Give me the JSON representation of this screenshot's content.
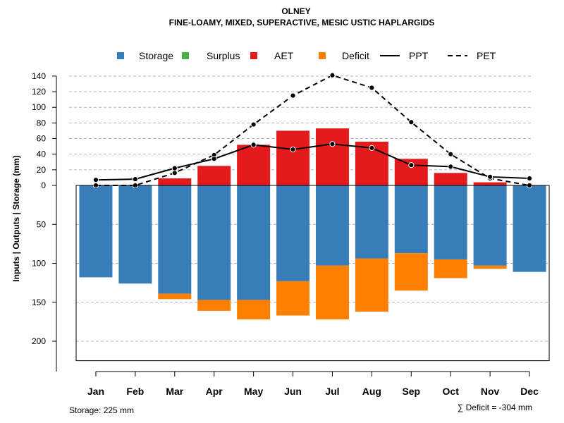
{
  "chart_data": {
    "type": "bar",
    "title": "OLNEY",
    "subtitle": "FINE-LOAMY, MIXED, SUPERACTIVE, MESIC USTIC HAPLARGIDS",
    "ylabel": "Inputs | Outputs | Storage    (mm)",
    "categories": [
      "Jan",
      "Feb",
      "Mar",
      "Apr",
      "May",
      "Jun",
      "Jul",
      "Aug",
      "Sep",
      "Oct",
      "Nov",
      "Dec"
    ],
    "upper_ticks": [
      0,
      20,
      40,
      60,
      80,
      100,
      120,
      140
    ],
    "lower_ticks": [
      50,
      100,
      150,
      200
    ],
    "upper_ylim": [
      0,
      145
    ],
    "lower_ylim": [
      0,
      225
    ],
    "series": [
      {
        "name": "Storage",
        "color": "#377EB8",
        "values": [
          118,
          126,
          139,
          147,
          147,
          123,
          103,
          94,
          87,
          95,
          103,
          111
        ]
      },
      {
        "name": "Surplus",
        "color": "#4DAF4A",
        "values": [
          0,
          0,
          0,
          0,
          0,
          0,
          0,
          0,
          0,
          0,
          0,
          0
        ]
      },
      {
        "name": "AET",
        "color": "#E41A1C",
        "values": [
          0,
          0,
          9,
          25,
          52,
          70,
          73,
          56,
          34,
          16,
          4,
          0
        ]
      },
      {
        "name": "Deficit",
        "color": "#FF7F00",
        "values": [
          0,
          0,
          7,
          14,
          25,
          44,
          69,
          68,
          48,
          24,
          4,
          0
        ]
      },
      {
        "name": "PPT",
        "color": "#000000",
        "style": "solid",
        "values": [
          7,
          8,
          22,
          34,
          52,
          46,
          53,
          48,
          26,
          24,
          11,
          9
        ]
      },
      {
        "name": "PET",
        "color": "#000000",
        "style": "dashed",
        "values": [
          0,
          0,
          16,
          39,
          78,
          115,
          141,
          125,
          81,
          40,
          9,
          0
        ]
      }
    ],
    "legend": [
      {
        "label": "Storage",
        "color": "#377EB8",
        "kind": "square"
      },
      {
        "label": "Surplus",
        "color": "#4DAF4A",
        "kind": "square"
      },
      {
        "label": "AET",
        "color": "#E41A1C",
        "kind": "square"
      },
      {
        "label": "Deficit",
        "color": "#FF7F00",
        "kind": "square"
      },
      {
        "label": "PPT",
        "color": "#000000",
        "kind": "solid"
      },
      {
        "label": "PET",
        "color": "#000000",
        "kind": "dashed"
      }
    ],
    "grid": true,
    "legend_position": "top"
  },
  "footer": {
    "storage_text": "Storage: 225 mm",
    "deficit_text": "∑ Deficit = -304 mm"
  }
}
